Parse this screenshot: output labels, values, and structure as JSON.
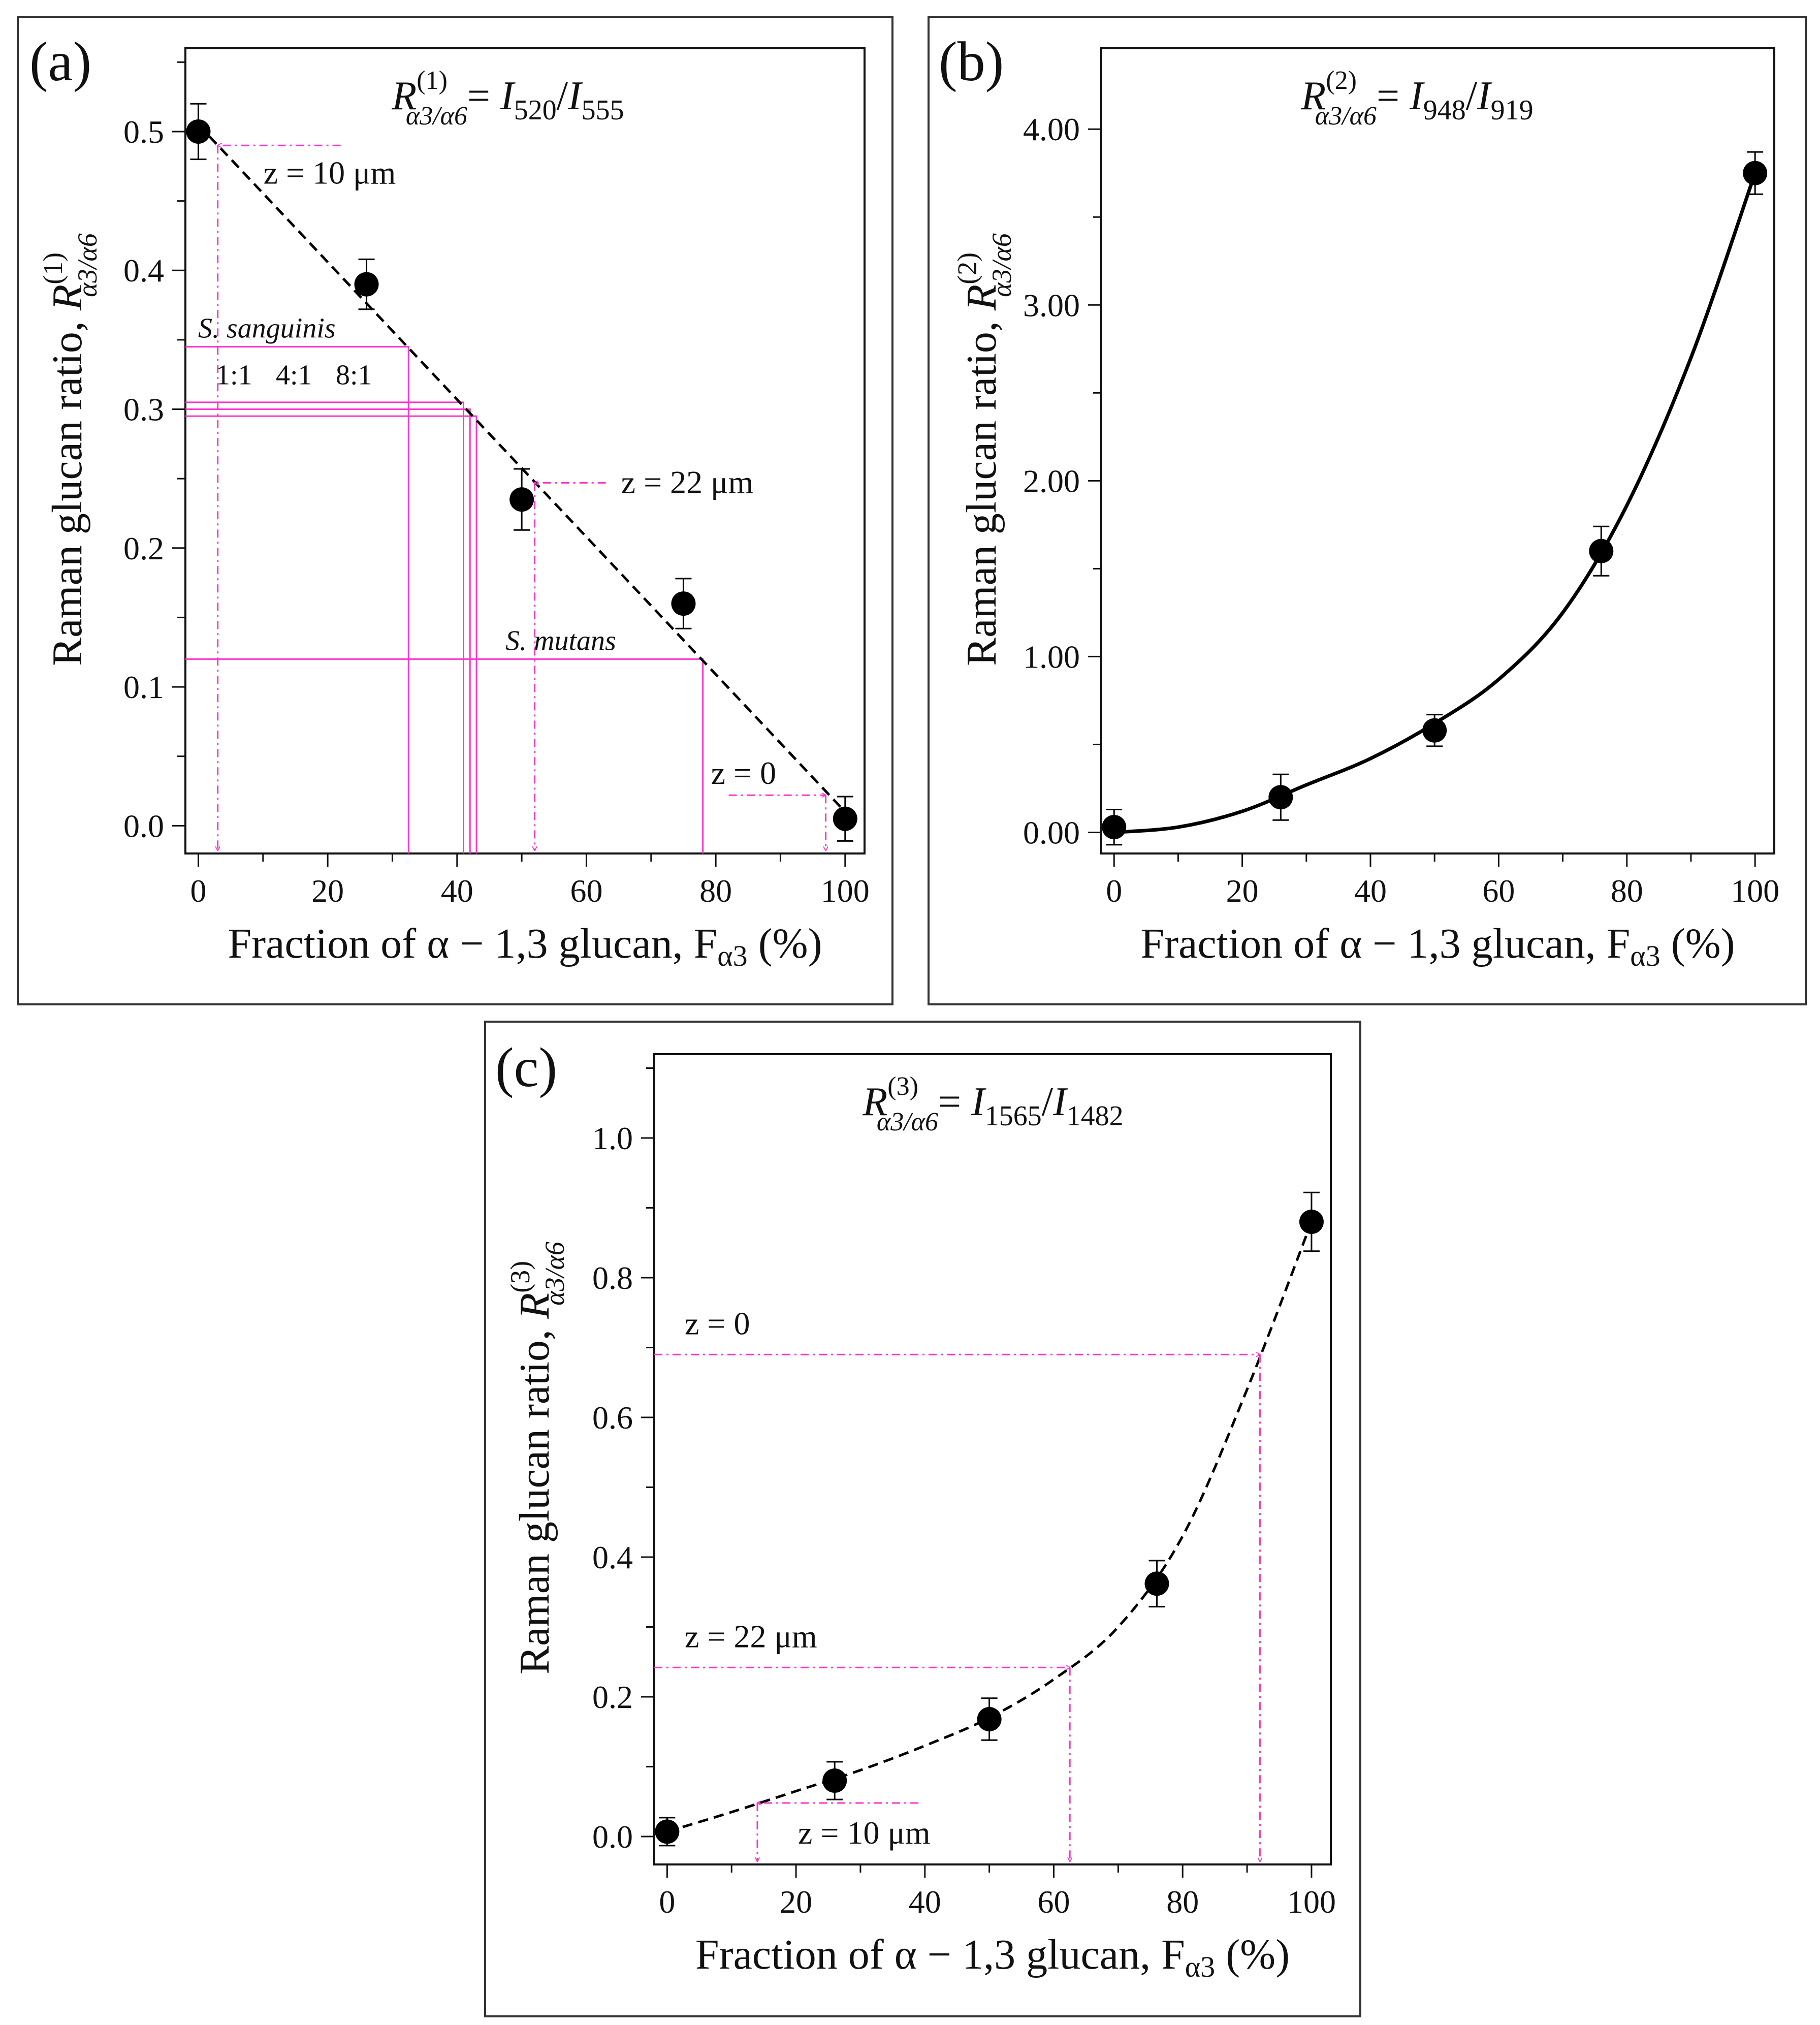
{
  "colors": {
    "axis": "#111111",
    "data": "#000000",
    "annotation": "#ff33cc",
    "panel_border": "#333333"
  },
  "chart_data": [
    {
      "type": "scatter",
      "panel_label": "(a)",
      "title": {
        "base": "R",
        "sup": "(1)",
        "sub": "α3/α6",
        "expr": [
          "= ",
          "I",
          "520",
          "/",
          "I",
          "555"
        ]
      },
      "xlabel": {
        "pre": "Fraction of α − 1,3 glucan, F",
        "sub": "α3",
        "post": " (%)"
      },
      "ylabel": {
        "pre": "Raman glucan ratio, ",
        "base": "R",
        "sup": "(1)",
        "sub": "α3/α6"
      },
      "xlim": [
        -2,
        103
      ],
      "ylim": [
        -0.02,
        0.56
      ],
      "xticks": [
        0,
        20,
        40,
        60,
        80,
        100
      ],
      "xtick_labels": [
        "0",
        "20",
        "40",
        "60",
        "80",
        "100"
      ],
      "yticks": [
        0.0,
        0.1,
        0.2,
        0.3,
        0.4,
        0.5
      ],
      "ytick_labels": [
        "0.0",
        "0.1",
        "0.2",
        "0.3",
        "0.4",
        "0.5"
      ],
      "x": [
        0,
        26,
        50,
        75,
        100
      ],
      "y": [
        0.5,
        0.39,
        0.235,
        0.16,
        0.005
      ],
      "err": [
        0.02,
        0.018,
        0.022,
        0.018,
        0.016
      ],
      "fit": {
        "kind": "line",
        "style": "dashed",
        "x": [
          0,
          100
        ],
        "y": [
          0.505,
          0.01
        ]
      },
      "annotations": {
        "arrows": [
          {
            "label": "z = 10 μm",
            "y": 0.49,
            "x_from": 22,
            "x_to": 3
          },
          {
            "label": "z = 22 μm",
            "y": 0.247,
            "x_from": 63,
            "x_to": 52
          },
          {
            "label": "z = 0",
            "y": 0.022,
            "x_from": 82,
            "x_to": 97
          }
        ],
        "guides": [
          {
            "label": "S. sanguinis",
            "y": 0.345,
            "x": 32.5
          },
          {
            "label": "",
            "y": 0.305,
            "x": 41
          },
          {
            "label": "",
            "y": 0.3,
            "x": 42
          },
          {
            "label": "",
            "y": 0.295,
            "x": 43
          },
          {
            "label": "S. mutans",
            "y": 0.12,
            "x": 78
          }
        ],
        "ratio_labels": [
          "1:1",
          "4:1",
          "8:1"
        ]
      }
    },
    {
      "type": "scatter",
      "panel_label": "(b)",
      "title": {
        "base": "R",
        "sup": "(2)",
        "sub": "α3/α6",
        "expr": [
          "= ",
          "I",
          "948",
          "/",
          "I",
          "919"
        ]
      },
      "xlabel": {
        "pre": "Fraction of α − 1,3 glucan, F",
        "sub": "α3",
        "post": " (%)"
      },
      "ylabel": {
        "pre": "Raman glucan ratio, ",
        "base": "R",
        "sup": "(2)",
        "sub": "α3/α6"
      },
      "xlim": [
        -2,
        103
      ],
      "ylim": [
        -0.12,
        4.46
      ],
      "xticks": [
        0,
        20,
        40,
        60,
        80,
        100
      ],
      "xtick_labels": [
        "0",
        "20",
        "40",
        "60",
        "80",
        "100"
      ],
      "yticks": [
        0.0,
        1.0,
        2.0,
        3.0,
        4.0
      ],
      "ytick_labels": [
        "0.00",
        "1.00",
        "2.00",
        "3.00",
        "4.00"
      ],
      "x": [
        0,
        26,
        50,
        76,
        100
      ],
      "y": [
        0.03,
        0.2,
        0.58,
        1.6,
        3.75
      ],
      "err": [
        0.1,
        0.13,
        0.09,
        0.14,
        0.12
      ],
      "fit": {
        "kind": "curve",
        "style": "solid",
        "x": [
          0,
          10,
          20,
          30,
          40,
          50,
          60,
          70,
          80,
          90,
          100
        ],
        "y": [
          0.0,
          0.03,
          0.12,
          0.27,
          0.42,
          0.62,
          0.87,
          1.25,
          1.86,
          2.7,
          3.75
        ]
      },
      "annotations": {
        "arrows": [],
        "guides": [],
        "ratio_labels": []
      }
    },
    {
      "type": "scatter",
      "panel_label": "(c)",
      "title": {
        "base": "R",
        "sup": "(3)",
        "sub": "α3/α6",
        "expr": [
          "= ",
          "I",
          "1565",
          "/",
          "I",
          "1482"
        ]
      },
      "xlabel": {
        "pre": "Fraction of α − 1,3 glucan, F",
        "sub": "α3",
        "post": " (%)"
      },
      "ylabel": {
        "pre": "Raman glucan ratio, ",
        "base": "R",
        "sup": "(3)",
        "sub": "α3/α6"
      },
      "xlim": [
        -2,
        103
      ],
      "ylim": [
        -0.04,
        1.12
      ],
      "xticks": [
        0,
        20,
        40,
        60,
        80,
        100
      ],
      "xtick_labels": [
        "0",
        "20",
        "40",
        "60",
        "80",
        "100"
      ],
      "yticks": [
        0.0,
        0.2,
        0.4,
        0.6,
        0.8,
        1.0
      ],
      "ytick_labels": [
        "0.0",
        "0.2",
        "0.4",
        "0.6",
        "0.8",
        "1.0"
      ],
      "x": [
        0,
        26,
        50,
        76,
        100
      ],
      "y": [
        0.007,
        0.08,
        0.168,
        0.362,
        0.88
      ],
      "err": [
        0.02,
        0.027,
        0.03,
        0.033,
        0.042
      ],
      "fit": {
        "kind": "curve",
        "style": "dashed",
        "x": [
          0,
          10,
          20,
          30,
          40,
          50,
          60,
          70,
          80,
          90,
          100
        ],
        "y": [
          0.007,
          0.035,
          0.065,
          0.095,
          0.13,
          0.17,
          0.225,
          0.3,
          0.43,
          0.64,
          0.88
        ]
      },
      "annotations": {
        "arrows": [
          {
            "label": "z = 0",
            "y": 0.69,
            "x_from": -2,
            "x_to": 92
          },
          {
            "label": "z = 22 μm",
            "y": 0.242,
            "x_from": -2,
            "x_to": 62.5
          },
          {
            "label": "z = 10 μm",
            "y": 0.048,
            "x_from": 39,
            "x_to": 14
          }
        ],
        "guides": [],
        "ratio_labels": []
      }
    }
  ]
}
